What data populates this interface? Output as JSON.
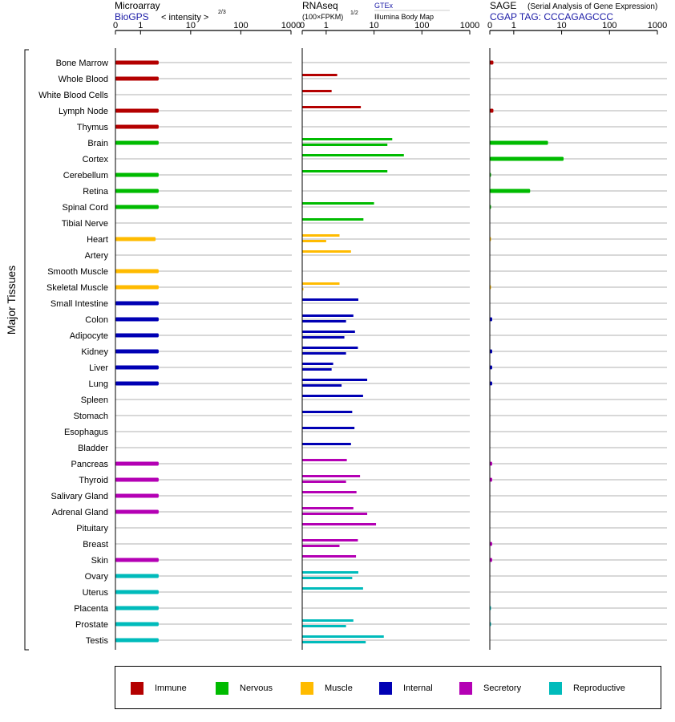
{
  "panels": {
    "microarray": {
      "title": "Microarray",
      "source": "BioGPS",
      "scale_label": "< intensity >",
      "scale_exp": "2/3"
    },
    "rnaseq": {
      "title": "RNAseq",
      "scale_label": "(100×FPKM)",
      "scale_exp": "1/2",
      "source1": "GTEx",
      "source2": "Illumina Body Map"
    },
    "sage": {
      "title": "SAGE",
      "subtitle": "(Serial Analysis of Gene Expression)",
      "source": "CGAP TAG: CCCAGAGCCC"
    }
  },
  "y_axis_label": "Major Tissues",
  "colors": {
    "Immune": "#b40000",
    "Nervous": "#00bb00",
    "Muscle": "#ffbb00",
    "Internal": "#0000b4",
    "Secretory": "#b400b4",
    "Reproductive": "#00bbbb"
  },
  "legend": [
    "Immune",
    "Nervous",
    "Muscle",
    "Internal",
    "Secretory",
    "Reproductive"
  ],
  "chart_data": {
    "type": "bar",
    "x_ticks": [
      "0",
      "1",
      "10",
      "100",
      "1000"
    ],
    "x_tick_values": [
      0,
      1,
      10,
      100,
      1000
    ],
    "xlim": [
      0,
      1000
    ],
    "tissues": [
      {
        "name": "Bone Marrow",
        "group": "Immune",
        "microarray": 2.3,
        "rnaseq": [],
        "sage": 0.15
      },
      {
        "name": "Whole Blood",
        "group": "Immune",
        "microarray": 2.3,
        "rnaseq": [
          1.7
        ],
        "sage": null
      },
      {
        "name": "White Blood Cells",
        "group": "Immune",
        "microarray": null,
        "rnaseq": [
          1.3
        ],
        "sage": null
      },
      {
        "name": "Lymph Node",
        "group": "Immune",
        "microarray": 2.3,
        "rnaseq": [
          5.3
        ],
        "sage": 0.15
      },
      {
        "name": "Thymus",
        "group": "Immune",
        "microarray": 2.3,
        "rnaseq": [],
        "sage": null
      },
      {
        "name": "Brain",
        "group": "Nervous",
        "microarray": 2.3,
        "rnaseq": [
          24,
          19
        ],
        "sage": 5.2
      },
      {
        "name": "Cortex",
        "group": "Nervous",
        "microarray": null,
        "rnaseq": [
          42
        ],
        "sage": 11
      },
      {
        "name": "Cerebellum",
        "group": "Nervous",
        "microarray": 2.3,
        "rnaseq": [
          19
        ],
        "sage": 0.05
      },
      {
        "name": "Retina",
        "group": "Nervous",
        "microarray": 2.3,
        "rnaseq": [],
        "sage": 2.2
      },
      {
        "name": "Spinal Cord",
        "group": "Nervous",
        "microarray": 2.3,
        "rnaseq": [
          10
        ],
        "sage": 0.05
      },
      {
        "name": "Tibial Nerve",
        "group": "Nervous",
        "microarray": null,
        "rnaseq": [
          6
        ],
        "sage": null
      },
      {
        "name": "Heart",
        "group": "Muscle",
        "microarray": 2.0,
        "rnaseq": [
          1.9,
          1.0
        ],
        "sage": 0.03
      },
      {
        "name": "Artery",
        "group": "Muscle",
        "microarray": null,
        "rnaseq": [
          3.3
        ],
        "sage": null
      },
      {
        "name": "Smooth Muscle",
        "group": "Muscle",
        "microarray": 2.3,
        "rnaseq": [],
        "sage": null
      },
      {
        "name": "Skeletal Muscle",
        "group": "Muscle",
        "microarray": 2.3,
        "rnaseq": [
          1.9,
          0.05
        ],
        "sage": 0.03
      },
      {
        "name": "Small Intestine",
        "group": "Internal",
        "microarray": 2.3,
        "rnaseq": [
          4.7
        ],
        "sage": null
      },
      {
        "name": "Colon",
        "group": "Internal",
        "microarray": 2.3,
        "rnaseq": [
          3.7,
          2.6
        ],
        "sage": 0.1
      },
      {
        "name": "Adipocyte",
        "group": "Internal",
        "microarray": 2.3,
        "rnaseq": [
          4.0,
          2.4
        ],
        "sage": null
      },
      {
        "name": "Kidney",
        "group": "Internal",
        "microarray": 2.3,
        "rnaseq": [
          4.6,
          2.6
        ],
        "sage": 0.1
      },
      {
        "name": "Liver",
        "group": "Internal",
        "microarray": 2.3,
        "rnaseq": [
          1.4,
          1.3
        ],
        "sage": 0.1
      },
      {
        "name": "Lung",
        "group": "Internal",
        "microarray": 2.3,
        "rnaseq": [
          7.2,
          2.1
        ],
        "sage": 0.1
      },
      {
        "name": "Spleen",
        "group": "Internal",
        "microarray": null,
        "rnaseq": [
          5.9
        ],
        "sage": null
      },
      {
        "name": "Stomach",
        "group": "Internal",
        "microarray": null,
        "rnaseq": [
          3.5
        ],
        "sage": null
      },
      {
        "name": "Esophagus",
        "group": "Internal",
        "microarray": null,
        "rnaseq": [
          3.9
        ],
        "sage": null
      },
      {
        "name": "Bladder",
        "group": "Internal",
        "microarray": null,
        "rnaseq": [
          3.3
        ],
        "sage": null
      },
      {
        "name": "Pancreas",
        "group": "Secretory",
        "microarray": 2.3,
        "rnaseq": [
          2.7
        ],
        "sage": 0.1
      },
      {
        "name": "Thyroid",
        "group": "Secretory",
        "microarray": 2.3,
        "rnaseq": [
          5.1,
          2.6
        ],
        "sage": 0.1
      },
      {
        "name": "Salivary Gland",
        "group": "Secretory",
        "microarray": 2.3,
        "rnaseq": [
          4.3
        ],
        "sage": null
      },
      {
        "name": "Adrenal Gland",
        "group": "Secretory",
        "microarray": 2.3,
        "rnaseq": [
          3.7,
          7.2
        ],
        "sage": null
      },
      {
        "name": "Pituitary",
        "group": "Secretory",
        "microarray": null,
        "rnaseq": [
          11
        ],
        "sage": null
      },
      {
        "name": "Breast",
        "group": "Secretory",
        "microarray": null,
        "rnaseq": [
          4.6,
          1.9
        ],
        "sage": 0.1
      },
      {
        "name": "Skin",
        "group": "Secretory",
        "microarray": 2.3,
        "rnaseq": [
          4.2
        ],
        "sage": 0.1
      },
      {
        "name": "Ovary",
        "group": "Reproductive",
        "microarray": 2.3,
        "rnaseq": [
          4.7,
          3.5
        ],
        "sage": null
      },
      {
        "name": "Uterus",
        "group": "Reproductive",
        "microarray": 2.3,
        "rnaseq": [
          5.9
        ],
        "sage": null
      },
      {
        "name": "Placenta",
        "group": "Reproductive",
        "microarray": 2.3,
        "rnaseq": [],
        "sage": 0.05
      },
      {
        "name": "Prostate",
        "group": "Reproductive",
        "microarray": 2.3,
        "rnaseq": [
          3.7,
          2.6
        ],
        "sage": 0.05
      },
      {
        "name": "Testis",
        "group": "Reproductive",
        "microarray": 2.3,
        "rnaseq": [
          16,
          6.7
        ],
        "sage": null
      }
    ]
  }
}
